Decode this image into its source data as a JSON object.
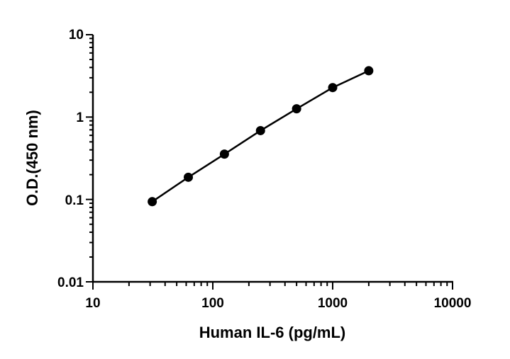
{
  "chart_data": {
    "type": "line",
    "title": "",
    "xlabel": "Human IL-6 (pg/mL)",
    "ylabel": "O.D.(450 nm)",
    "xscale": "log",
    "yscale": "log",
    "xlim": [
      10,
      10000
    ],
    "ylim": [
      0.01,
      10
    ],
    "x_ticks": [
      "10",
      "100",
      "1000",
      "10000"
    ],
    "y_ticks": [
      "10",
      "1",
      "0.1",
      "0.01"
    ],
    "grid": false,
    "legend": "none",
    "marker": "circle",
    "color": "#000000",
    "series": [
      {
        "x": [
          31.25,
          62.5,
          125,
          250,
          500,
          1000,
          2000
        ],
        "y": [
          0.094,
          0.186,
          0.355,
          0.685,
          1.26,
          2.28,
          3.65
        ]
      }
    ]
  }
}
